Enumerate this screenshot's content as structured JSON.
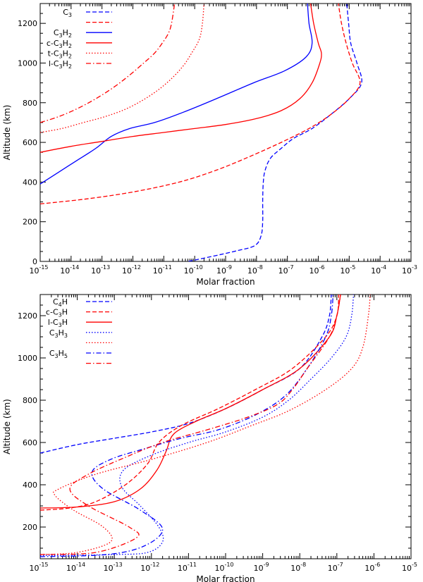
{
  "chart_data": [
    {
      "type": "line",
      "xscale": "log",
      "xlim_exp": [
        -15,
        -3
      ],
      "ylim": [
        0,
        1300
      ],
      "yticks": [
        0,
        200,
        400,
        600,
        800,
        1000,
        1200
      ],
      "xlabel": "Molar fraction",
      "ylabel": "Altitude (km)",
      "legend": "top-left",
      "series": [
        {
          "name": "C3",
          "label_text": "C",
          "label_sub": "3",
          "color": "#0000ff",
          "dash": "dashed",
          "points": [
            [
              -10.2,
              0
            ],
            [
              -9.3,
              30
            ],
            [
              -8.6,
              55
            ],
            [
              -8.05,
              80
            ],
            [
              -7.85,
              130
            ],
            [
              -7.8,
              200
            ],
            [
              -7.8,
              300
            ],
            [
              -7.78,
              400
            ],
            [
              -7.72,
              460
            ],
            [
              -7.55,
              520
            ],
            [
              -7.2,
              570
            ],
            [
              -6.8,
              620
            ],
            [
              -6.2,
              670
            ],
            [
              -5.6,
              740
            ],
            [
              -5.0,
              820
            ],
            [
              -4.6,
              900
            ],
            [
              -4.75,
              1000
            ],
            [
              -4.95,
              1100
            ],
            [
              -5.02,
              1200
            ],
            [
              -5.08,
              1300
            ]
          ]
        },
        {
          "name": "C3 (red)",
          "label_text": "",
          "label_sub": "",
          "color": "#ff0000",
          "dash": "dashed",
          "points": [
            [
              -15,
              290
            ],
            [
              -13.5,
              315
            ],
            [
              -12,
              350
            ],
            [
              -10.5,
              400
            ],
            [
              -9.3,
              460
            ],
            [
              -8.2,
              530
            ],
            [
              -7.2,
              600
            ],
            [
              -6.3,
              670
            ],
            [
              -5.6,
              740
            ],
            [
              -5.0,
              820
            ],
            [
              -4.65,
              900
            ],
            [
              -4.9,
              1000
            ],
            [
              -5.1,
              1100
            ],
            [
              -5.25,
              1200
            ],
            [
              -5.35,
              1300
            ]
          ]
        },
        {
          "name": "C3H2",
          "label_text": "C",
          "label_sub": "3",
          "label_text2": "H",
          "label_sub2": "2",
          "color": "#0000ff",
          "dash": "solid",
          "points": [
            [
              -15,
              390
            ],
            [
              -14.4,
              450
            ],
            [
              -13.8,
              510
            ],
            [
              -13.2,
              570
            ],
            [
              -12.7,
              630
            ],
            [
              -12.1,
              670
            ],
            [
              -11.3,
              700
            ],
            [
              -10.4,
              750
            ],
            [
              -9.3,
              820
            ],
            [
              -8.1,
              900
            ],
            [
              -7.1,
              960
            ],
            [
              -6.4,
              1030
            ],
            [
              -6.2,
              1100
            ],
            [
              -6.3,
              1200
            ],
            [
              -6.35,
              1300
            ]
          ]
        },
        {
          "name": "c-C3H2",
          "label_text": "c-C",
          "label_sub": "3",
          "label_text2": "H",
          "label_sub2": "2",
          "color": "#ff0000",
          "dash": "solid",
          "points": [
            [
              -15,
              550
            ],
            [
              -14,
              580
            ],
            [
              -13,
              605
            ],
            [
              -12,
              630
            ],
            [
              -11,
              650
            ],
            [
              -10,
              670
            ],
            [
              -9,
              690
            ],
            [
              -8,
              720
            ],
            [
              -7.2,
              760
            ],
            [
              -6.6,
              820
            ],
            [
              -6.2,
              900
            ],
            [
              -5.95,
              1000
            ],
            [
              -5.9,
              1050
            ],
            [
              -6.0,
              1100
            ],
            [
              -6.15,
              1200
            ],
            [
              -6.25,
              1300
            ]
          ]
        },
        {
          "name": "t-C3H2",
          "label_text": "t-C",
          "label_sub": "3",
          "label_text2": "H",
          "label_sub2": "2",
          "color": "#ff0000",
          "dash": "dotted",
          "points": [
            [
              -15,
              650
            ],
            [
              -14.3,
              670
            ],
            [
              -13.6,
              700
            ],
            [
              -12.9,
              730
            ],
            [
              -12.2,
              770
            ],
            [
              -11.5,
              830
            ],
            [
              -10.9,
              900
            ],
            [
              -10.4,
              980
            ],
            [
              -10.1,
              1050
            ],
            [
              -9.85,
              1120
            ],
            [
              -9.75,
              1200
            ],
            [
              -9.7,
              1300
            ]
          ]
        },
        {
          "name": "l-C3H2",
          "label_text": "l-C",
          "label_sub": "3",
          "label_text2": "H",
          "label_sub2": "2",
          "color": "#ff0000",
          "dash": "dashdot",
          "points": [
            [
              -15,
              700
            ],
            [
              -14.4,
              730
            ],
            [
              -13.8,
              770
            ],
            [
              -13.2,
              820
            ],
            [
              -12.6,
              880
            ],
            [
              -12.1,
              940
            ],
            [
              -11.65,
              1000
            ],
            [
              -11.3,
              1050
            ],
            [
              -11.05,
              1100
            ],
            [
              -10.85,
              1150
            ],
            [
              -10.75,
              1200
            ],
            [
              -10.65,
              1300
            ]
          ]
        }
      ]
    },
    {
      "type": "line",
      "xscale": "log",
      "xlim_exp": [
        -15,
        -5
      ],
      "ylim": [
        50,
        1300
      ],
      "yticks": [
        200,
        400,
        600,
        800,
        1000,
        1200
      ],
      "xlabel": "Molar fraction",
      "ylabel": "Altitude (km)",
      "legend": "top-left",
      "series": [
        {
          "name": "C4H",
          "label_text": "C",
          "label_sub": "4",
          "label_text2": "H",
          "label_sub2": "",
          "color": "#0000ff",
          "dash": "dashed",
          "points": [
            [
              -15,
              550
            ],
            [
              -14,
              590
            ],
            [
              -13,
              620
            ],
            [
              -12,
              650
            ],
            [
              -11,
              690
            ],
            [
              -10,
              760
            ],
            [
              -9,
              850
            ],
            [
              -8,
              950
            ],
            [
              -7.4,
              1100
            ],
            [
              -7.2,
              1200
            ],
            [
              -7.15,
              1300
            ]
          ]
        },
        {
          "name": "c-C3H",
          "label_text": "c-C",
          "label_sub": "3",
          "label_text2": "H",
          "label_sub2": "",
          "color": "#ff0000",
          "dash": "dashed",
          "points": [
            [
              -15,
              280
            ],
            [
              -14.2,
              290
            ],
            [
              -13.5,
              320
            ],
            [
              -12.7,
              400
            ],
            [
              -12.1,
              500
            ],
            [
              -11.8,
              600
            ],
            [
              -11.2,
              680
            ],
            [
              -10.2,
              760
            ],
            [
              -9.2,
              850
            ],
            [
              -8.2,
              950
            ],
            [
              -7.3,
              1100
            ],
            [
              -7.0,
              1200
            ],
            [
              -6.95,
              1300
            ]
          ]
        },
        {
          "name": "l-C3H",
          "label_text": "l-C",
          "label_sub": "3",
          "label_text2": "H",
          "label_sub2": "",
          "color": "#ff0000",
          "dash": "solid",
          "points": [
            [
              -15,
              290
            ],
            [
              -14,
              295
            ],
            [
              -13,
              320
            ],
            [
              -12.3,
              380
            ],
            [
              -11.85,
              470
            ],
            [
              -11.6,
              560
            ],
            [
              -11.4,
              640
            ],
            [
              -10.8,
              700
            ],
            [
              -10,
              760
            ],
            [
              -9,
              850
            ],
            [
              -8,
              950
            ],
            [
              -7.2,
              1100
            ],
            [
              -7.0,
              1200
            ],
            [
              -6.9,
              1300
            ]
          ]
        },
        {
          "name": "C3H3",
          "label_text": "C",
          "label_sub": "3",
          "label_text2": "H",
          "label_sub2": "3",
          "color": "#0000ff",
          "dash": "dotted",
          "points": [
            [
              -15,
              65
            ],
            [
              -13,
              70
            ],
            [
              -12.1,
              80
            ],
            [
              -11.7,
              130
            ],
            [
              -11.8,
              200
            ],
            [
              -12.3,
              300
            ],
            [
              -12.8,
              390
            ],
            [
              -12.75,
              470
            ],
            [
              -12,
              540
            ],
            [
              -11,
              600
            ],
            [
              -10,
              650
            ],
            [
              -9,
              720
            ],
            [
              -8.3,
              800
            ],
            [
              -7.7,
              900
            ],
            [
              -7.15,
              1000
            ],
            [
              -6.75,
              1100
            ],
            [
              -6.6,
              1200
            ],
            [
              -6.55,
              1300
            ]
          ]
        },
        {
          "name": "C3H3 (red)",
          "label_text": "",
          "label_sub": "",
          "color": "#ff0000",
          "dash": "dotted",
          "points": [
            [
              -15,
              70
            ],
            [
              -14,
              80
            ],
            [
              -13.1,
              130
            ],
            [
              -13.3,
              200
            ],
            [
              -14.1,
              280
            ],
            [
              -14.6,
              350
            ],
            [
              -14.5,
              380
            ],
            [
              -13.5,
              450
            ],
            [
              -12,
              520
            ],
            [
              -10.5,
              600
            ],
            [
              -9.3,
              680
            ],
            [
              -8.3,
              750
            ],
            [
              -7.3,
              850
            ],
            [
              -6.6,
              950
            ],
            [
              -6.3,
              1050
            ],
            [
              -6.15,
              1200
            ],
            [
              -6.1,
              1300
            ]
          ]
        },
        {
          "name": "C3H5",
          "label_text": "C",
          "label_sub": "3",
          "label_text2": "H",
          "label_sub2": "5",
          "color": "#0000ff",
          "dash": "dashdot",
          "points": [
            [
              -15,
              60
            ],
            [
              -13.2,
              70
            ],
            [
              -12.2,
              110
            ],
            [
              -11.7,
              190
            ],
            [
              -12.3,
              280
            ],
            [
              -13.3,
              380
            ],
            [
              -13.6,
              460
            ],
            [
              -13.1,
              520
            ],
            [
              -12.2,
              570
            ],
            [
              -11.2,
              620
            ],
            [
              -10.2,
              660
            ],
            [
              -9.2,
              730
            ],
            [
              -8.4,
              820
            ],
            [
              -7.8,
              950
            ],
            [
              -7.3,
              1100
            ],
            [
              -7.15,
              1200
            ],
            [
              -7.1,
              1300
            ]
          ]
        },
        {
          "name": "C3H5 (red)",
          "label_text": "",
          "label_sub": "",
          "color": "#ff0000",
          "dash": "dashdot",
          "points": [
            [
              -15,
              70
            ],
            [
              -13.5,
              80
            ],
            [
              -12.4,
              150
            ],
            [
              -12.6,
              200
            ],
            [
              -13.7,
              300
            ],
            [
              -14.2,
              380
            ],
            [
              -13.7,
              450
            ],
            [
              -12.7,
              530
            ],
            [
              -11.7,
              600
            ],
            [
              -10.5,
              660
            ],
            [
              -9.4,
              720
            ],
            [
              -8.6,
              780
            ],
            [
              -8.2,
              850
            ],
            [
              -7.8,
              950
            ],
            [
              -7.2,
              1100
            ],
            [
              -7.0,
              1200
            ],
            [
              -6.9,
              1300
            ]
          ]
        }
      ]
    }
  ],
  "tick_exponents": {
    "top": [
      "-15",
      "-14",
      "-13",
      "-12",
      "-11",
      "-10",
      "-9",
      "-8",
      "-7",
      "-6",
      "-5",
      "-4",
      "-3"
    ],
    "bottom": [
      "-15",
      "-14",
      "-13",
      "-12",
      "-11",
      "-10",
      "-9",
      "-8",
      "-7",
      "-6",
      "-5"
    ]
  },
  "tick_base": "10",
  "y_tick_labels": {
    "top": [
      "0",
      "200",
      "400",
      "600",
      "800",
      "1000",
      "1200"
    ],
    "bottom": [
      "200",
      "400",
      "600",
      "800",
      "1000",
      "1200"
    ]
  }
}
